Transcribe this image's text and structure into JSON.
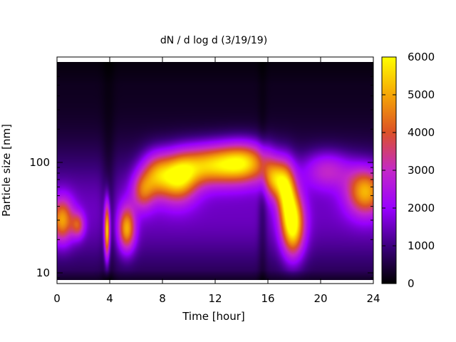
{
  "chart_data": {
    "type": "heatmap",
    "title": "dN / d log d (3/19/19)",
    "xlabel": "Time [hour]",
    "ylabel": "Particle size [nm]",
    "xlim": [
      0,
      24
    ],
    "ylim": [
      8,
      900
    ],
    "y_scale": "log",
    "x_ticks": [
      0,
      4,
      8,
      12,
      16,
      20,
      24
    ],
    "y_tick_labels": [
      10,
      100
    ],
    "colorbar": {
      "min": 0,
      "max": 6000,
      "ticks": [
        0,
        1000,
        2000,
        3000,
        4000,
        5000,
        6000
      ]
    },
    "background_level": 1500,
    "features": [
      {
        "x_center": 0.4,
        "x_width": 0.6,
        "diameter_nm": 30,
        "log_width": 0.14,
        "peak": 3500
      },
      {
        "x_center": 1.6,
        "x_width": 0.35,
        "diameter_nm": 27,
        "log_width": 0.08,
        "peak": 2300
      },
      {
        "x_center": 3.8,
        "x_width": 0.15,
        "diameter_nm": 24,
        "log_width": 0.18,
        "peak": 4700
      },
      {
        "x_center": 5.3,
        "x_width": 0.45,
        "diameter_nm": 25,
        "log_width": 0.14,
        "peak": 3700
      },
      {
        "x_center": 6.5,
        "x_width": 0.6,
        "diameter_nm": 55,
        "log_width": 0.12,
        "peak": 2400
      },
      {
        "x_center": 7.5,
        "x_width": 0.8,
        "diameter_nm": 78,
        "log_width": 0.14,
        "peak": 2900
      },
      {
        "x_center": 9.2,
        "x_width": 1.0,
        "diameter_nm": 72,
        "log_width": 0.15,
        "peak": 4100
      },
      {
        "x_center": 11.5,
        "x_width": 1.7,
        "diameter_nm": 95,
        "log_width": 0.13,
        "peak": 4000
      },
      {
        "x_center": 14.3,
        "x_width": 1.4,
        "diameter_nm": 100,
        "log_width": 0.13,
        "peak": 4000
      },
      {
        "x_center": 16.5,
        "x_width": 0.6,
        "diameter_nm": 70,
        "log_width": 0.12,
        "peak": 3200
      },
      {
        "x_center": 17.9,
        "x_width": 0.6,
        "diameter_nm": 27,
        "log_width": 0.2,
        "peak": 4900
      },
      {
        "x_center": 17.4,
        "x_width": 0.5,
        "diameter_nm": 55,
        "log_width": 0.18,
        "peak": 3600
      },
      {
        "x_center": 20.5,
        "x_width": 1.3,
        "diameter_nm": 85,
        "log_width": 0.12,
        "peak": 1900
      },
      {
        "x_center": 23.4,
        "x_width": 1.0,
        "diameter_nm": 55,
        "log_width": 0.15,
        "peak": 3800
      }
    ],
    "dips": [
      {
        "x_center": 3.9,
        "x_width": 0.35,
        "depth": 700
      },
      {
        "x_center": 15.6,
        "x_width": 0.25,
        "depth": 600
      }
    ]
  }
}
